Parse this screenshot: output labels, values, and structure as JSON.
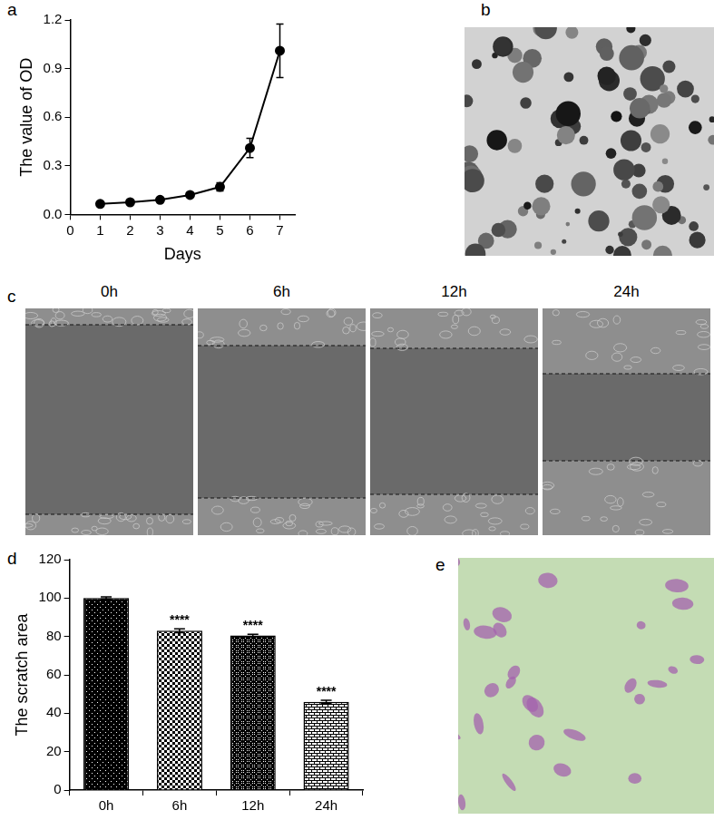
{
  "chart_data": [
    {
      "panel": "a",
      "type": "line",
      "x_label": "Days",
      "y_label": "The value of OD",
      "x": [
        1,
        2,
        3,
        4,
        5,
        6,
        7
      ],
      "values": [
        0.065,
        0.075,
        0.09,
        0.12,
        0.17,
        0.41,
        1.01
      ],
      "errors": [
        0.01,
        0.01,
        0.005,
        0.01,
        0.025,
        0.06,
        0.165
      ],
      "color": "#000000",
      "marker": "circle",
      "xlim": [
        0,
        7.5
      ],
      "xticks": [
        0,
        1,
        2,
        3,
        4,
        5,
        6,
        7
      ],
      "ylim": [
        0,
        1.2
      ],
      "yticks": [
        {
          "value": 0,
          "label": "0.0"
        },
        0.3,
        0.6,
        0.9,
        1.2
      ],
      "grid": false
    },
    {
      "panel": "d",
      "type": "bar",
      "y_label": "The scratch area",
      "categories": [
        "0h",
        "6h",
        "12h",
        "24h"
      ],
      "values": [
        100,
        83,
        80.5,
        46
      ],
      "errors": [
        0.6,
        1,
        0.6,
        0.8
      ],
      "annotations": [
        null,
        "****",
        "****",
        "****"
      ],
      "color": "#000000",
      "ylim": [
        0,
        120
      ],
      "yticks": [
        0,
        20,
        40,
        60,
        80,
        100,
        120
      ],
      "grid": false
    }
  ],
  "images": [
    {
      "panel": "b"
    },
    {
      "panel": "c",
      "captions": [
        "0h",
        "6h",
        "12h",
        "24h"
      ]
    },
    {
      "panel": "e"
    }
  ]
}
